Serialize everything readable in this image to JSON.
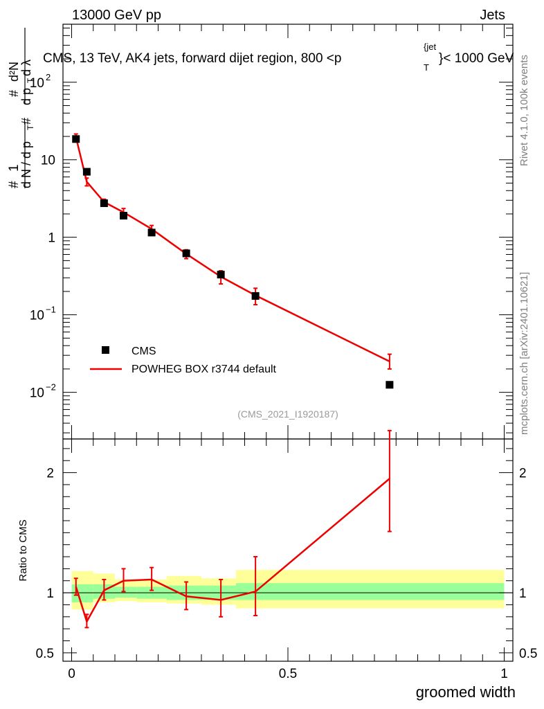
{
  "header": {
    "beam": "13000 GeV pp",
    "process": "Jets",
    "plot_title": "CMS, 13 TeV, AK4 jets, forward dijet region, 800 <p",
    "plot_title_sup": "{jet",
    "plot_title_sub": "T",
    "plot_title_end": "}< 1000 GeV"
  },
  "side": {
    "rivet": "Rivet 4.1.0,  100k events",
    "mcplots": "mcplots.cern.ch [arXiv:2401.10621]"
  },
  "watermark": "(CMS_2021_I1920187)",
  "legend": {
    "data_label": "CMS",
    "mc_label": "POWHEG BOX r3744 default"
  },
  "colors": {
    "mc": "#ee0000",
    "band_inner": "#99ff99",
    "band_outer": "#ffff99"
  },
  "chart_data": [
    {
      "type": "scatter",
      "panel": "main",
      "ylabel": "# 1/(d N / d pT #) d²N/(d pT d λ)",
      "y_scale": "log",
      "xlim": [
        -0.02,
        1.02
      ],
      "ylim": [
        0.0025,
        560
      ],
      "y_ticks": [
        {
          "value": 0.01,
          "mantissa": "10",
          "exp": "−2"
        },
        {
          "value": 0.1,
          "mantissa": "10",
          "exp": "−1"
        },
        {
          "value": 1,
          "mantissa": "1",
          "exp": ""
        },
        {
          "value": 10,
          "mantissa": "10",
          "exp": ""
        },
        {
          "value": 100,
          "mantissa": "10",
          "exp": "2"
        }
      ],
      "series": [
        {
          "name": "CMS",
          "x": [
            0.01,
            0.035,
            0.075,
            0.12,
            0.185,
            0.265,
            0.345,
            0.425,
            0.735
          ],
          "values": [
            18.5,
            7.0,
            2.75,
            1.9,
            1.15,
            0.62,
            0.33,
            0.175,
            0.0125
          ]
        },
        {
          "name": "POWHEG BOX r3744 default",
          "x": [
            0.01,
            0.035,
            0.075,
            0.12,
            0.185,
            0.265,
            0.345,
            0.425,
            0.735
          ],
          "values": [
            19.5,
            5.2,
            2.85,
            2.1,
            1.28,
            0.61,
            0.31,
            0.178,
            0.025
          ],
          "err_lo": [
            17.5,
            4.6,
            2.6,
            1.9,
            1.14,
            0.53,
            0.25,
            0.135,
            0.02
          ],
          "err_hi": [
            21.5,
            5.8,
            3.1,
            2.35,
            1.42,
            0.69,
            0.37,
            0.22,
            0.031
          ]
        }
      ]
    },
    {
      "type": "line",
      "panel": "ratio",
      "ylabel": "Ratio to CMS",
      "xlabel": "groomed width",
      "xlim": [
        -0.02,
        1.02
      ],
      "ylim": [
        0.43,
        2.28
      ],
      "x_ticks": [
        "0",
        "0.5",
        "1"
      ],
      "y_ticks": [
        "0.5",
        "1",
        "2"
      ],
      "reference": 1,
      "bands": {
        "edges": [
          0.0,
          0.05,
          0.1,
          0.15,
          0.22,
          0.3,
          0.38,
          1.0
        ],
        "inner_lo": [
          0.92,
          0.95,
          0.96,
          0.95,
          0.94,
          0.94,
          0.94
        ],
        "inner_hi": [
          1.07,
          1.07,
          1.05,
          1.05,
          1.06,
          1.06,
          1.08
        ],
        "outer_lo": [
          0.86,
          0.92,
          0.93,
          0.92,
          0.91,
          0.9,
          0.87
        ],
        "outer_hi": [
          1.18,
          1.16,
          1.11,
          1.11,
          1.14,
          1.12,
          1.19
        ]
      },
      "series": [
        {
          "name": "POWHEG BOX r3744 default",
          "x": [
            0.01,
            0.035,
            0.075,
            0.12,
            0.185,
            0.265,
            0.345,
            0.425,
            0.735
          ],
          "values": [
            1.05,
            0.76,
            1.02,
            1.1,
            1.11,
            0.97,
            0.94,
            1.01,
            1.95
          ],
          "err_lo": [
            0.98,
            0.71,
            0.94,
            1.01,
            1.02,
            0.86,
            0.8,
            0.81,
            1.51
          ],
          "err_hi": [
            1.12,
            0.82,
            1.11,
            1.2,
            1.21,
            1.09,
            1.11,
            1.3,
            2.35
          ]
        }
      ]
    }
  ]
}
